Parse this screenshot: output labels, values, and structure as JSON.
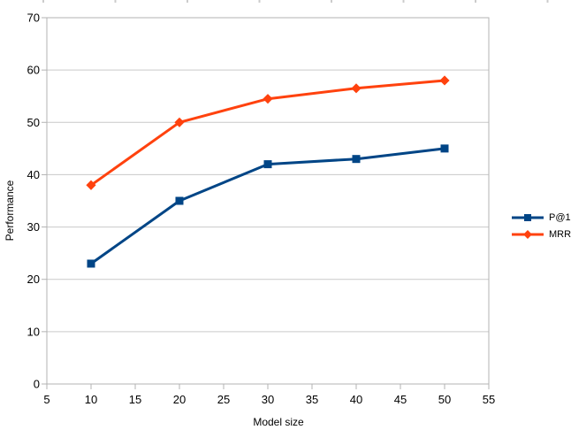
{
  "chart_data": {
    "type": "line",
    "title": "",
    "xlabel": "Model size",
    "ylabel": "Performance",
    "x": [
      10,
      20,
      30,
      40,
      50
    ],
    "series": [
      {
        "name": "P@1",
        "color": "#004586",
        "marker": "square",
        "values": [
          23,
          35,
          42,
          43,
          45
        ]
      },
      {
        "name": "MRR",
        "color": "#FF420E",
        "marker": "diamond",
        "values": [
          38,
          50,
          54.5,
          56.5,
          58
        ]
      }
    ],
    "xlim": [
      5,
      55
    ],
    "ylim": [
      0,
      70
    ],
    "x_ticks": [
      5,
      10,
      15,
      20,
      25,
      30,
      35,
      40,
      45,
      50,
      55
    ],
    "y_ticks": [
      0,
      10,
      20,
      30,
      40,
      50,
      60,
      70
    ],
    "grid": "horizontal",
    "legend_position": "right",
    "colors": {
      "gridline": "#c9c9c9",
      "plot_border": "#b3b3b3",
      "tick_label": "#000000",
      "axis_title": "#000000",
      "top_ruler_tick": "#cccccc"
    }
  }
}
